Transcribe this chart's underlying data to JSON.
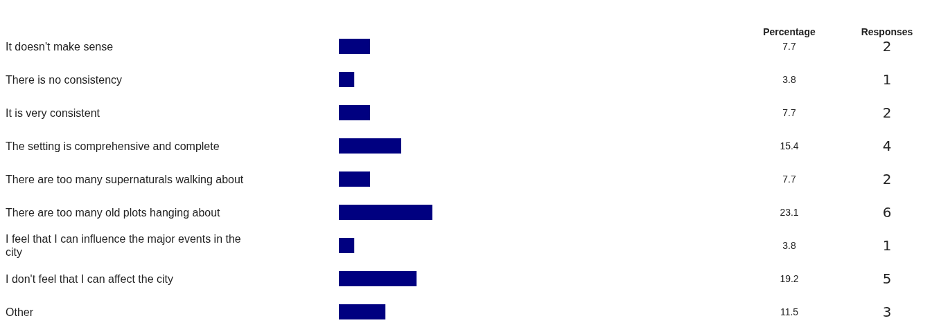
{
  "chart_data": [
    {
      "type": "bar",
      "orientation": "horizontal",
      "data_labels": true,
      "categories": [
        "It doesn't make sense",
        "There is no consistency",
        "It is very consistent",
        "The setting is comprehensive and complete",
        "There are too many supernaturals walking about",
        "There are too many old plots hanging about",
        "I feel that I can influence the major events in the city",
        "I don't feel that I can affect the city",
        "Other"
      ],
      "series": [
        {
          "name": "Percentage",
          "color": "#000080",
          "values": [
            7.7,
            3.8,
            7.7,
            15.4,
            7.7,
            23.1,
            3.8,
            19.2,
            11.5
          ]
        }
      ]
    },
    {
      "type": "other",
      "title": "Responses",
      "data_labels": true,
      "values": [
        2,
        1,
        2,
        4,
        2,
        6,
        1,
        5,
        3
      ]
    }
  ]
}
